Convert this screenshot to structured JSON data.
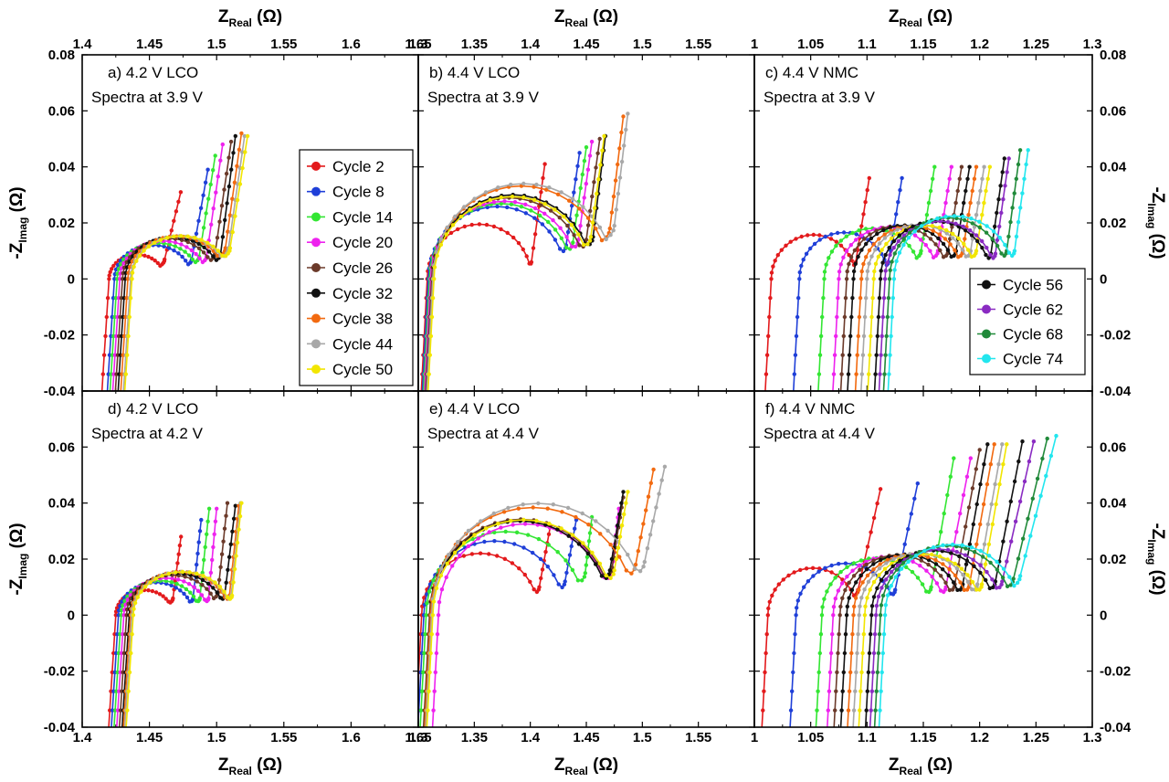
{
  "colors": {
    "cycle2": "#e31a1c",
    "cycle8": "#1f3fd8",
    "cycle14": "#33e633",
    "cycle20": "#ee22ee",
    "cycle26": "#6b3a2a",
    "cycle32": "#111111",
    "cycle38": "#f26a10",
    "cycle44": "#a8a8a8",
    "cycle50": "#f2e600",
    "cycle56": "#111111",
    "cycle62": "#8a2bc2",
    "cycle68": "#218a3a",
    "cycle74": "#22e6ee"
  },
  "axis_text": {
    "x_main": "Z",
    "x_sub": "Real",
    "x_unit": "(Ω)",
    "y_main": "-Z",
    "y_sub": "Imag",
    "y_unit": "(Ω)"
  },
  "legends": {
    "lco": [
      "Cycle 2",
      "Cycle 8",
      "Cycle 14",
      "Cycle 20",
      "Cycle 26",
      "Cycle 32",
      "Cycle 38",
      "Cycle 44",
      "Cycle 50"
    ],
    "nmc": [
      "Cycle 56",
      "Cycle 62",
      "Cycle 68",
      "Cycle 74"
    ]
  },
  "chart_data": [
    {
      "type": "line",
      "panel": "a",
      "label_line1": "a) 4.2 V LCO",
      "label_line2": "Spectra at 3.9 V",
      "xlim": [
        1.4,
        1.65
      ],
      "ylim": [
        -0.04,
        0.08
      ],
      "xticks": [
        "1.4",
        "1.45",
        "1.5",
        "1.55",
        "1.6",
        "1.65"
      ],
      "yticks": [
        "-0.04",
        "-0.02",
        "0",
        "0.02",
        "0.04",
        "0.06",
        "0.08"
      ],
      "series": [
        {
          "name": "Cycle 2",
          "color": "cycle2",
          "x0": 1.42,
          "r": 0.0413,
          "tail_dx": 0.012,
          "tail_dy": 0.024,
          "min_y": 0.007
        },
        {
          "name": "Cycle 8",
          "color": "cycle8",
          "x0": 1.424,
          "r": 0.0575,
          "tail_dx": 0.012,
          "tail_dy": 0.032,
          "min_y": 0.007
        },
        {
          "name": "Cycle 14",
          "color": "cycle14",
          "x0": 1.426,
          "r": 0.061,
          "tail_dx": 0.012,
          "tail_dy": 0.036,
          "min_y": 0.008
        },
        {
          "name": "Cycle 20",
          "color": "cycle20",
          "x0": 1.428,
          "r": 0.0645,
          "tail_dx": 0.012,
          "tail_dy": 0.04,
          "min_y": 0.008
        },
        {
          "name": "Cycle 26",
          "color": "cycle26",
          "x0": 1.43,
          "r": 0.0688,
          "tail_dx": 0.012,
          "tail_dy": 0.04,
          "min_y": 0.009
        },
        {
          "name": "Cycle 32",
          "color": "cycle32",
          "x0": 1.432,
          "r": 0.071,
          "tail_dx": 0.011,
          "tail_dy": 0.042,
          "min_y": 0.009
        },
        {
          "name": "Cycle 38",
          "color": "cycle38",
          "x0": 1.434,
          "r": 0.0725,
          "tail_dx": 0.012,
          "tail_dy": 0.041,
          "min_y": 0.011
        },
        {
          "name": "Cycle 44",
          "color": "cycle44",
          "x0": 1.436,
          "r": 0.0728,
          "tail_dx": 0.012,
          "tail_dy": 0.04,
          "min_y": 0.011
        },
        {
          "name": "Cycle 50",
          "color": "cycle50",
          "x0": 1.437,
          "r": 0.073,
          "tail_dx": 0.013,
          "tail_dy": 0.04,
          "min_y": 0.011
        }
      ]
    },
    {
      "type": "line",
      "panel": "b",
      "label_line1": "b) 4.4 V LCO",
      "label_line2": "Spectra at 3.9 V",
      "xlim": [
        1.3,
        1.6
      ],
      "ylim": [
        -0.04,
        0.08
      ],
      "xticks": [
        "1.3",
        "1.35",
        "1.4",
        "1.45",
        "1.5",
        "1.55"
      ],
      "yticks": [],
      "series": [
        {
          "name": "Cycle 2",
          "color": "cycle2",
          "x0": 1.308,
          "r": 0.093,
          "tail_dx": 0.012,
          "tail_dy": 0.035,
          "min_y": 0.006
        },
        {
          "name": "Cycle 8",
          "color": "cycle8",
          "x0": 1.309,
          "r": 0.123,
          "tail_dx": 0.012,
          "tail_dy": 0.033,
          "min_y": 0.012
        },
        {
          "name": "Cycle 14",
          "color": "cycle14",
          "x0": 1.31,
          "r": 0.128,
          "tail_dx": 0.012,
          "tail_dy": 0.034,
          "min_y": 0.013
        },
        {
          "name": "Cycle 20",
          "color": "cycle20",
          "x0": 1.311,
          "r": 0.132,
          "tail_dx": 0.012,
          "tail_dy": 0.035,
          "min_y": 0.014
        },
        {
          "name": "Cycle 26",
          "color": "cycle26",
          "x0": 1.312,
          "r": 0.138,
          "tail_dx": 0.012,
          "tail_dy": 0.036,
          "min_y": 0.014
        },
        {
          "name": "Cycle 32",
          "color": "cycle32",
          "x0": 1.313,
          "r": 0.143,
          "tail_dx": 0.011,
          "tail_dy": 0.036,
          "min_y": 0.015
        },
        {
          "name": "Cycle 38",
          "color": "cycle38",
          "x0": 1.313,
          "r": 0.158,
          "tail_dx": 0.012,
          "tail_dy": 0.04,
          "min_y": 0.018
        },
        {
          "name": "Cycle 44",
          "color": "cycle44",
          "x0": 1.313,
          "r": 0.162,
          "tail_dx": 0.012,
          "tail_dy": 0.04,
          "min_y": 0.019
        },
        {
          "name": "Cycle 50",
          "color": "cycle50",
          "x0": 1.314,
          "r": 0.14,
          "tail_dx": 0.012,
          "tail_dy": 0.036,
          "min_y": 0.015
        }
      ]
    },
    {
      "type": "line",
      "panel": "c",
      "label_line1": "c) 4.4 V NMC",
      "label_line2": "Spectra at 3.9 V",
      "xlim": [
        1.0,
        1.3
      ],
      "ylim": [
        -0.04,
        0.08
      ],
      "xticks": [
        "1",
        "1.05",
        "1.1",
        "1.15",
        "1.2",
        "1.25",
        "1.3"
      ],
      "yticks": [
        "-0.04",
        "-0.02",
        "0",
        "0.02",
        "0.04",
        "0.06",
        "0.08"
      ],
      "series": [
        {
          "name": "Cycle 2",
          "color": "cycle2",
          "x0": 1.015,
          "r": 0.075,
          "tail_dx": 0.012,
          "tail_dy": 0.03,
          "min_y": 0.006
        },
        {
          "name": "Cycle 8",
          "color": "cycle8",
          "x0": 1.04,
          "r": 0.079,
          "tail_dx": 0.012,
          "tail_dy": 0.03,
          "min_y": 0.006
        },
        {
          "name": "Cycle 14",
          "color": "cycle14",
          "x0": 1.062,
          "r": 0.086,
          "tail_dx": 0.012,
          "tail_dy": 0.03,
          "min_y": 0.01
        },
        {
          "name": "Cycle 20",
          "color": "cycle20",
          "x0": 1.075,
          "r": 0.088,
          "tail_dx": 0.012,
          "tail_dy": 0.03,
          "min_y": 0.01
        },
        {
          "name": "Cycle 26",
          "color": "cycle26",
          "x0": 1.082,
          "r": 0.09,
          "tail_dx": 0.012,
          "tail_dy": 0.03,
          "min_y": 0.01
        },
        {
          "name": "Cycle 32",
          "color": "cycle32",
          "x0": 1.088,
          "r": 0.091,
          "tail_dx": 0.012,
          "tail_dy": 0.03,
          "min_y": 0.01
        },
        {
          "name": "Cycle 38",
          "color": "cycle38",
          "x0": 1.095,
          "r": 0.09,
          "tail_dx": 0.012,
          "tail_dy": 0.03,
          "min_y": 0.01
        },
        {
          "name": "Cycle 44",
          "color": "cycle44",
          "x0": 1.1,
          "r": 0.092,
          "tail_dx": 0.012,
          "tail_dy": 0.03,
          "min_y": 0.01
        },
        {
          "name": "Cycle 50",
          "color": "cycle50",
          "x0": 1.106,
          "r": 0.091,
          "tail_dx": 0.012,
          "tail_dy": 0.03,
          "min_y": 0.01
        },
        {
          "name": "Cycle 56",
          "color": "cycle56",
          "x0": 1.112,
          "r": 0.098,
          "tail_dx": 0.012,
          "tail_dy": 0.034,
          "min_y": 0.009
        },
        {
          "name": "Cycle 62",
          "color": "cycle62",
          "x0": 1.116,
          "r": 0.098,
          "tail_dx": 0.012,
          "tail_dy": 0.034,
          "min_y": 0.009
        },
        {
          "name": "Cycle 68",
          "color": "cycle68",
          "x0": 1.12,
          "r": 0.104,
          "tail_dx": 0.012,
          "tail_dy": 0.036,
          "min_y": 0.01
        },
        {
          "name": "Cycle 74",
          "color": "cycle74",
          "x0": 1.124,
          "r": 0.107,
          "tail_dx": 0.012,
          "tail_dy": 0.036,
          "min_y": 0.01
        }
      ]
    },
    {
      "type": "line",
      "panel": "d",
      "label_line1": "d) 4.2 V LCO",
      "label_line2": "Spectra at 4.2 V",
      "xlim": [
        1.4,
        1.65
      ],
      "ylim": [
        -0.04,
        0.08
      ],
      "xticks": [
        "1.4",
        "1.45",
        "1.5",
        "1.55",
        "1.6",
        "1.65"
      ],
      "yticks": [
        "-0.04",
        "-0.02",
        "0",
        "0.02",
        "0.04",
        "0.06"
      ],
      "series": [
        {
          "name": "Cycle 2",
          "color": "cycle2",
          "x0": 1.425,
          "r": 0.0425,
          "tail_dx": 0.006,
          "tail_dy": 0.022,
          "min_y": 0.006
        },
        {
          "name": "Cycle 8",
          "color": "cycle8",
          "x0": 1.427,
          "r": 0.0555,
          "tail_dx": 0.006,
          "tail_dy": 0.028,
          "min_y": 0.006
        },
        {
          "name": "Cycle 14",
          "color": "cycle14",
          "x0": 1.429,
          "r": 0.0585,
          "tail_dx": 0.007,
          "tail_dy": 0.032,
          "min_y": 0.006
        },
        {
          "name": "Cycle 20",
          "color": "cycle20",
          "x0": 1.431,
          "r": 0.063,
          "tail_dx": 0.006,
          "tail_dy": 0.032,
          "min_y": 0.006
        },
        {
          "name": "Cycle 26",
          "color": "cycle26",
          "x0": 1.433,
          "r": 0.068,
          "tail_dx": 0.007,
          "tail_dy": 0.032,
          "min_y": 0.008
        },
        {
          "name": "Cycle 32",
          "color": "cycle32",
          "x0": 1.435,
          "r": 0.071,
          "tail_dx": 0.008,
          "tail_dy": 0.032,
          "min_y": 0.007
        },
        {
          "name": "Cycle 38",
          "color": "cycle38",
          "x0": 1.436,
          "r": 0.0735,
          "tail_dx": 0.007,
          "tail_dy": 0.032,
          "min_y": 0.007
        },
        {
          "name": "Cycle 44",
          "color": "cycle44",
          "x0": 1.437,
          "r": 0.0738,
          "tail_dx": 0.007,
          "tail_dy": 0.033,
          "min_y": 0.007
        },
        {
          "name": "Cycle 50",
          "color": "cycle50",
          "x0": 1.438,
          "r": 0.0735,
          "tail_dx": 0.007,
          "tail_dy": 0.033,
          "min_y": 0.007
        }
      ]
    },
    {
      "type": "line",
      "panel": "e",
      "label_line1": "e) 4.4 V LCO",
      "label_line2": "Spectra at 4.4 V",
      "xlim": [
        1.3,
        1.6
      ],
      "ylim": [
        -0.04,
        0.08
      ],
      "xticks": [
        "1.3",
        "1.35",
        "1.4",
        "1.45",
        "1.5",
        "1.55"
      ],
      "yticks": [],
      "series": [
        {
          "name": "Cycle 2",
          "color": "cycle2",
          "x0": 1.303,
          "r": 0.105,
          "tail_dx": 0.01,
          "tail_dy": 0.022,
          "min_y": 0.01
        },
        {
          "name": "Cycle 8",
          "color": "cycle8",
          "x0": 1.305,
          "r": 0.126,
          "tail_dx": 0.01,
          "tail_dy": 0.022,
          "min_y": 0.012
        },
        {
          "name": "Cycle 14",
          "color": "cycle14",
          "x0": 1.307,
          "r": 0.142,
          "tail_dx": 0.006,
          "tail_dy": 0.02,
          "min_y": 0.015
        },
        {
          "name": "Cycle 20",
          "color": "cycle20",
          "x0": 1.318,
          "r": 0.155,
          "tail_dx": 0.006,
          "tail_dy": 0.022,
          "min_y": 0.016
        },
        {
          "name": "Cycle 26",
          "color": "cycle26",
          "x0": 1.31,
          "r": 0.163,
          "tail_dx": 0.01,
          "tail_dy": 0.025,
          "min_y": 0.017
        },
        {
          "name": "Cycle 32",
          "color": "cycle32",
          "x0": 1.311,
          "r": 0.16,
          "tail_dx": 0.012,
          "tail_dy": 0.028,
          "min_y": 0.016
        },
        {
          "name": "Cycle 38",
          "color": "cycle38",
          "x0": 1.311,
          "r": 0.183,
          "tail_dx": 0.016,
          "tail_dy": 0.034,
          "min_y": 0.018
        },
        {
          "name": "Cycle 44",
          "color": "cycle44",
          "x0": 1.312,
          "r": 0.19,
          "tail_dx": 0.018,
          "tail_dy": 0.034,
          "min_y": 0.019
        },
        {
          "name": "Cycle 50",
          "color": "cycle50",
          "x0": 1.313,
          "r": 0.162,
          "tail_dx": 0.012,
          "tail_dy": 0.028,
          "min_y": 0.016
        }
      ]
    },
    {
      "type": "line",
      "panel": "f",
      "label_line1": "f) 4.4 V NMC",
      "label_line2": "Spectra at 4.4 V",
      "xlim": [
        1.0,
        1.3
      ],
      "ylim": [
        -0.04,
        0.08
      ],
      "xticks": [
        "1",
        "1.05",
        "1.1",
        "1.15",
        "1.2",
        "1.25",
        "1.3"
      ],
      "yticks": [
        "-0.04",
        "-0.02",
        "0",
        "0.02",
        "0.04",
        "0.06"
      ],
      "series": [
        {
          "name": "Cycle 2",
          "color": "cycle2",
          "x0": 1.012,
          "r": 0.08,
          "tail_dx": 0.02,
          "tail_dy": 0.036,
          "min_y": 0.009
        },
        {
          "name": "Cycle 8",
          "color": "cycle8",
          "x0": 1.037,
          "r": 0.088,
          "tail_dx": 0.02,
          "tail_dy": 0.038,
          "min_y": 0.009
        },
        {
          "name": "Cycle 14",
          "color": "cycle14",
          "x0": 1.06,
          "r": 0.097,
          "tail_dx": 0.02,
          "tail_dy": 0.046,
          "min_y": 0.01
        },
        {
          "name": "Cycle 20",
          "color": "cycle20",
          "x0": 1.07,
          "r": 0.1,
          "tail_dx": 0.022,
          "tail_dy": 0.046,
          "min_y": 0.01
        },
        {
          "name": "Cycle 26",
          "color": "cycle26",
          "x0": 1.076,
          "r": 0.102,
          "tail_dx": 0.022,
          "tail_dy": 0.048,
          "min_y": 0.011
        },
        {
          "name": "Cycle 32",
          "color": "cycle32",
          "x0": 1.082,
          "r": 0.103,
          "tail_dx": 0.022,
          "tail_dy": 0.05,
          "min_y": 0.011
        },
        {
          "name": "Cycle 38",
          "color": "cycle38",
          "x0": 1.088,
          "r": 0.103,
          "tail_dx": 0.022,
          "tail_dy": 0.05,
          "min_y": 0.011
        },
        {
          "name": "Cycle 44",
          "color": "cycle44",
          "x0": 1.093,
          "r": 0.105,
          "tail_dx": 0.022,
          "tail_dy": 0.05,
          "min_y": 0.011
        },
        {
          "name": "Cycle 50",
          "color": "cycle50",
          "x0": 1.098,
          "r": 0.104,
          "tail_dx": 0.022,
          "tail_dy": 0.05,
          "min_y": 0.011
        },
        {
          "name": "Cycle 56",
          "color": "cycle56",
          "x0": 1.104,
          "r": 0.11,
          "tail_dx": 0.024,
          "tail_dy": 0.05,
          "min_y": 0.012
        },
        {
          "name": "Cycle 62",
          "color": "cycle62",
          "x0": 1.108,
          "r": 0.112,
          "tail_dx": 0.028,
          "tail_dy": 0.05,
          "min_y": 0.012
        },
        {
          "name": "Cycle 68",
          "color": "cycle68",
          "x0": 1.112,
          "r": 0.118,
          "tail_dx": 0.03,
          "tail_dy": 0.05,
          "min_y": 0.013
        },
        {
          "name": "Cycle 74",
          "color": "cycle74",
          "x0": 1.116,
          "r": 0.12,
          "tail_dx": 0.032,
          "tail_dy": 0.05,
          "min_y": 0.014
        }
      ]
    }
  ]
}
